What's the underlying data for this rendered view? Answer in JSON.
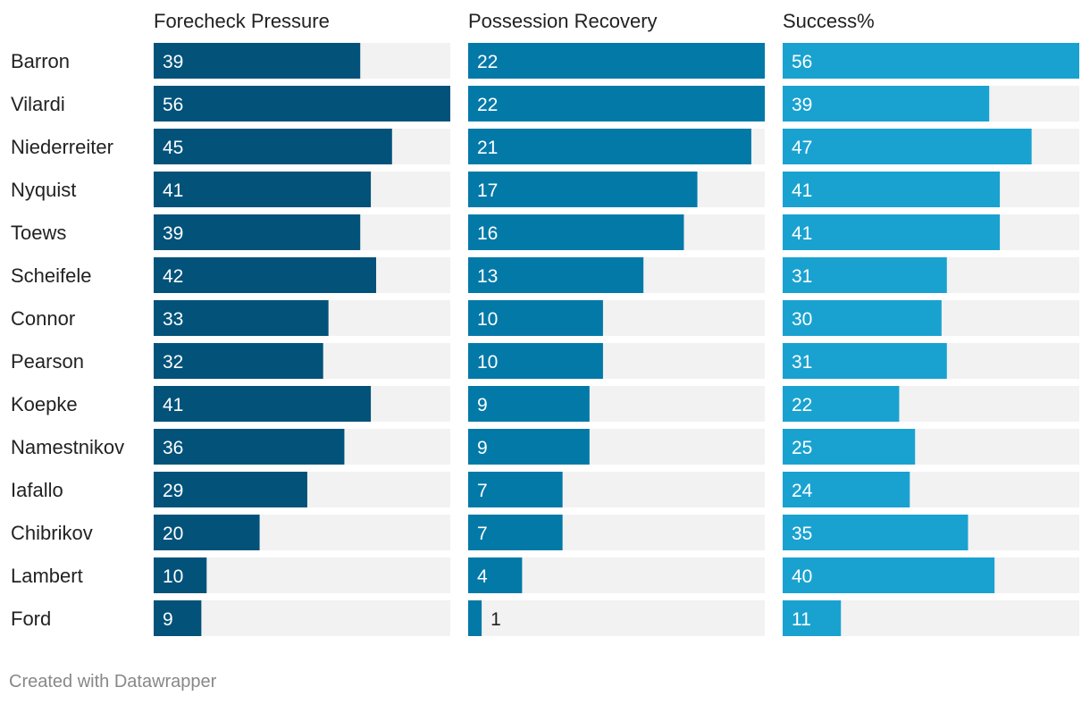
{
  "chart_data": {
    "type": "bar",
    "orientation": "horizontal",
    "categories": [
      "Barron",
      "Vilardi",
      "Niederreiter",
      "Nyquist",
      "Toews",
      "Scheifele",
      "Connor",
      "Pearson",
      "Koepke",
      "Namestnikov",
      "Iafallo",
      "Chibrikov",
      "Lambert",
      "Ford"
    ],
    "series": [
      {
        "name": "Forecheck Pressure",
        "values": [
          39,
          56,
          45,
          41,
          39,
          42,
          33,
          32,
          41,
          36,
          29,
          20,
          10,
          9
        ],
        "max": 56,
        "color": "#02527a"
      },
      {
        "name": "Possession Recovery",
        "values": [
          22,
          22,
          21,
          17,
          16,
          13,
          10,
          10,
          9,
          9,
          7,
          7,
          4,
          1
        ],
        "max": 22,
        "color": "#0379a8"
      },
      {
        "name": "Success%",
        "values": [
          56,
          39,
          47,
          41,
          41,
          31,
          30,
          31,
          22,
          25,
          24,
          35,
          40,
          11
        ],
        "max": 56,
        "color": "#19a2d0"
      }
    ],
    "track_color": "#f2f2f2",
    "legend": "none"
  },
  "footer": "Created with Datawrapper"
}
